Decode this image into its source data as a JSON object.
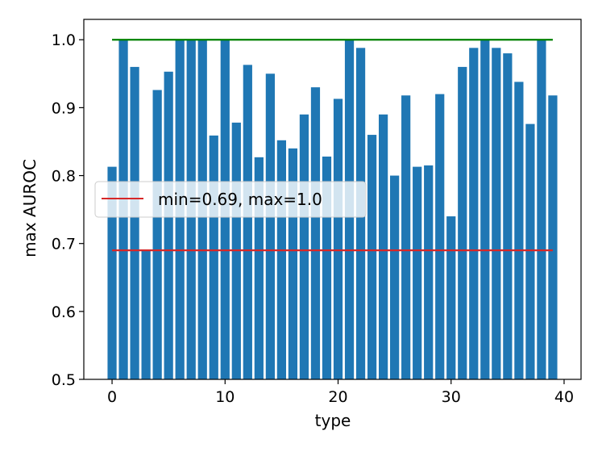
{
  "chart_data": {
    "type": "bar",
    "title": "",
    "xlabel": "type",
    "ylabel": "max AUROC",
    "xlim": [
      -2.5,
      41.5
    ],
    "ylim": [
      0.5,
      1.03
    ],
    "xticks": [
      0,
      10,
      20,
      30,
      40
    ],
    "yticks": [
      0.5,
      0.6,
      0.7,
      0.8,
      0.9,
      1.0
    ],
    "xtick_labels": [
      "0",
      "10",
      "20",
      "30",
      "40"
    ],
    "ytick_labels": [
      "0.5",
      "0.6",
      "0.7",
      "0.8",
      "0.9",
      "1.0"
    ],
    "grid": false,
    "legend_placement": "center-left",
    "bar_color": "#1f77b4",
    "x": [
      0,
      1,
      2,
      3,
      4,
      5,
      6,
      7,
      8,
      9,
      10,
      11,
      12,
      13,
      14,
      15,
      16,
      17,
      18,
      19,
      20,
      21,
      22,
      23,
      24,
      25,
      26,
      27,
      28,
      29,
      30,
      31,
      32,
      33,
      34,
      35,
      36,
      37,
      38,
      39
    ],
    "values": [
      0.813,
      1.0,
      0.96,
      0.691,
      0.926,
      0.953,
      1.0,
      1.0,
      1.0,
      0.859,
      1.0,
      0.878,
      0.963,
      0.827,
      0.95,
      0.852,
      0.84,
      0.89,
      0.93,
      0.828,
      0.913,
      1.0,
      0.988,
      0.86,
      0.89,
      0.8,
      0.918,
      0.813,
      0.815,
      0.92,
      0.74,
      0.96,
      0.988,
      1.0,
      0.988,
      0.98,
      0.938,
      0.876,
      1.0,
      0.918
    ],
    "lines": [
      {
        "name": "min=0.69, max=1.0",
        "y": 0.69,
        "x_range": [
          0,
          39
        ],
        "color": "#d62728"
      },
      {
        "name": "",
        "y": 1.0,
        "x_range": [
          0,
          39
        ],
        "color": "#008000"
      }
    ],
    "legend": {
      "label": "min=0.69, max=1.0",
      "color": "#d62728"
    }
  }
}
